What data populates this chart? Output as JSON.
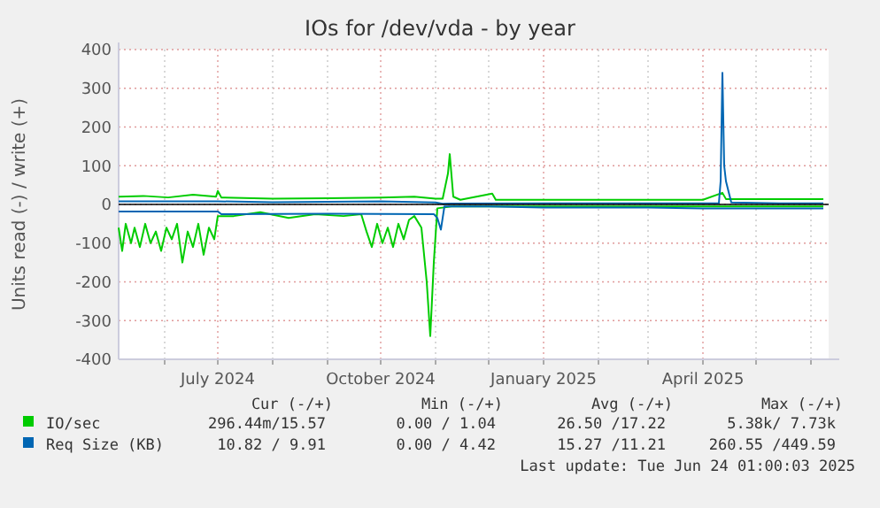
{
  "chart_data": {
    "type": "line",
    "title": "IOs for /dev/vda - by year",
    "ylabel": "Units read (-) / write (+)",
    "xlim": [
      "2024-05-06",
      "2025-06-11"
    ],
    "xticks": [
      {
        "value": "2024-06-01",
        "label": null
      },
      {
        "value": "2024-07-01",
        "label": "July 2024"
      },
      {
        "value": "2024-08-01",
        "label": null
      },
      {
        "value": "2024-09-01",
        "label": null
      },
      {
        "value": "2024-10-01",
        "label": "October 2024"
      },
      {
        "value": "2024-11-01",
        "label": null
      },
      {
        "value": "2024-12-01",
        "label": null
      },
      {
        "value": "2025-01-01",
        "label": "January 2025"
      },
      {
        "value": "2025-02-01",
        "label": null
      },
      {
        "value": "2025-03-01",
        "label": null
      },
      {
        "value": "2025-04-01",
        "label": "April 2025"
      },
      {
        "value": "2025-05-01",
        "label": null
      },
      {
        "value": "2025-06-01",
        "label": null
      }
    ],
    "ylim": [
      -400,
      400
    ],
    "yticks": [
      -400,
      -300,
      -200,
      -100,
      0,
      100,
      200,
      300,
      400
    ],
    "grid": true,
    "legend": "bottom",
    "ref_lines": [
      {
        "axis": "y",
        "value": 0,
        "color": "#000000"
      }
    ],
    "series": [
      {
        "name": "IO/sec",
        "color": "#00cc00",
        "x": [
          "2024-05-06",
          "2024-05-20",
          "2024-06-03",
          "2024-06-17",
          "2024-06-30",
          "2024-07-01",
          "2024-07-03",
          "2024-08-01",
          "2024-09-01",
          "2024-10-01",
          "2024-10-20",
          "2024-11-01",
          "2024-11-05",
          "2024-11-08",
          "2024-11-09",
          "2024-11-11",
          "2024-11-15",
          "2024-12-03",
          "2024-12-05",
          "2025-01-01",
          "2025-04-01",
          "2025-04-12",
          "2025-04-14",
          "2025-06-08"
        ],
        "values": [
          20,
          22,
          18,
          25,
          20,
          35,
          18,
          15,
          16,
          18,
          20,
          15,
          15,
          80,
          130,
          20,
          12,
          28,
          12,
          12,
          12,
          30,
          14,
          14
        ]
      },
      {
        "color": "#00cc00",
        "x": [
          "2024-05-06",
          "2024-05-08",
          "2024-05-10",
          "2024-05-13",
          "2024-05-15",
          "2024-05-18",
          "2024-05-21",
          "2024-05-24",
          "2024-05-27",
          "2024-05-30",
          "2024-06-02",
          "2024-06-05",
          "2024-06-08",
          "2024-06-11",
          "2024-06-14",
          "2024-06-17",
          "2024-06-20",
          "2024-06-23",
          "2024-06-26",
          "2024-06-29",
          "2024-07-01",
          "2024-07-10",
          "2024-07-25",
          "2024-08-10",
          "2024-08-25",
          "2024-09-10",
          "2024-09-20",
          "2024-09-23",
          "2024-09-26",
          "2024-09-29",
          "2024-10-02",
          "2024-10-05",
          "2024-10-08",
          "2024-10-11",
          "2024-10-14",
          "2024-10-17",
          "2024-10-20",
          "2024-10-24",
          "2024-10-27",
          "2024-10-29",
          "2024-10-31",
          "2024-11-02",
          "2024-11-10",
          "2025-01-01",
          "2025-06-08"
        ],
        "values": [
          -60,
          -120,
          -50,
          -100,
          -60,
          -110,
          -50,
          -100,
          -70,
          -120,
          -60,
          -90,
          -50,
          -150,
          -70,
          -110,
          -50,
          -130,
          -60,
          -90,
          -30,
          -30,
          -20,
          -35,
          -25,
          -30,
          -25,
          -70,
          -110,
          -50,
          -100,
          -60,
          -110,
          -50,
          -90,
          -40,
          -30,
          -60,
          -200,
          -340,
          -150,
          -10,
          -5,
          -5,
          -5
        ]
      },
      {
        "name": "Req Size (KB)",
        "color": "#0066b3",
        "x": [
          "2024-05-06",
          "2024-07-01",
          "2024-08-01",
          "2024-10-01",
          "2024-11-01",
          "2024-11-05",
          "2025-01-01",
          "2025-04-10",
          "2025-04-11",
          "2025-04-12",
          "2025-04-13",
          "2025-04-14",
          "2025-04-17",
          "2025-05-14",
          "2025-06-08"
        ],
        "values": [
          8,
          8,
          6,
          8,
          5,
          2,
          3,
          3,
          60,
          340,
          100,
          60,
          5,
          3,
          3
        ]
      },
      {
        "color": "#0066b3",
        "x": [
          "2024-05-06",
          "2024-07-01",
          "2024-07-03",
          "2024-09-01",
          "2024-10-31",
          "2024-11-02",
          "2024-11-04",
          "2024-11-06",
          "2024-12-01",
          "2025-01-01",
          "2025-03-01",
          "2025-04-01",
          "2025-06-08"
        ],
        "values": [
          -18,
          -18,
          -25,
          -24,
          -25,
          -35,
          -65,
          -5,
          -5,
          -8,
          -8,
          -10,
          -10
        ]
      }
    ],
    "annotations": [
      "Cur (-/+)",
      "Min (-/+)",
      "Avg (-/+)",
      "Max (-/+)",
      "296.44m/15.57",
      "0.00 / 1.04",
      "26.50 /17.22",
      "5.38k/ 7.73k",
      "10.82 / 9.91",
      "0.00 / 4.42",
      "15.27 /11.21",
      "260.55 /449.59",
      "Last update: Tue Jun 24 01:00:03 2025"
    ]
  }
}
